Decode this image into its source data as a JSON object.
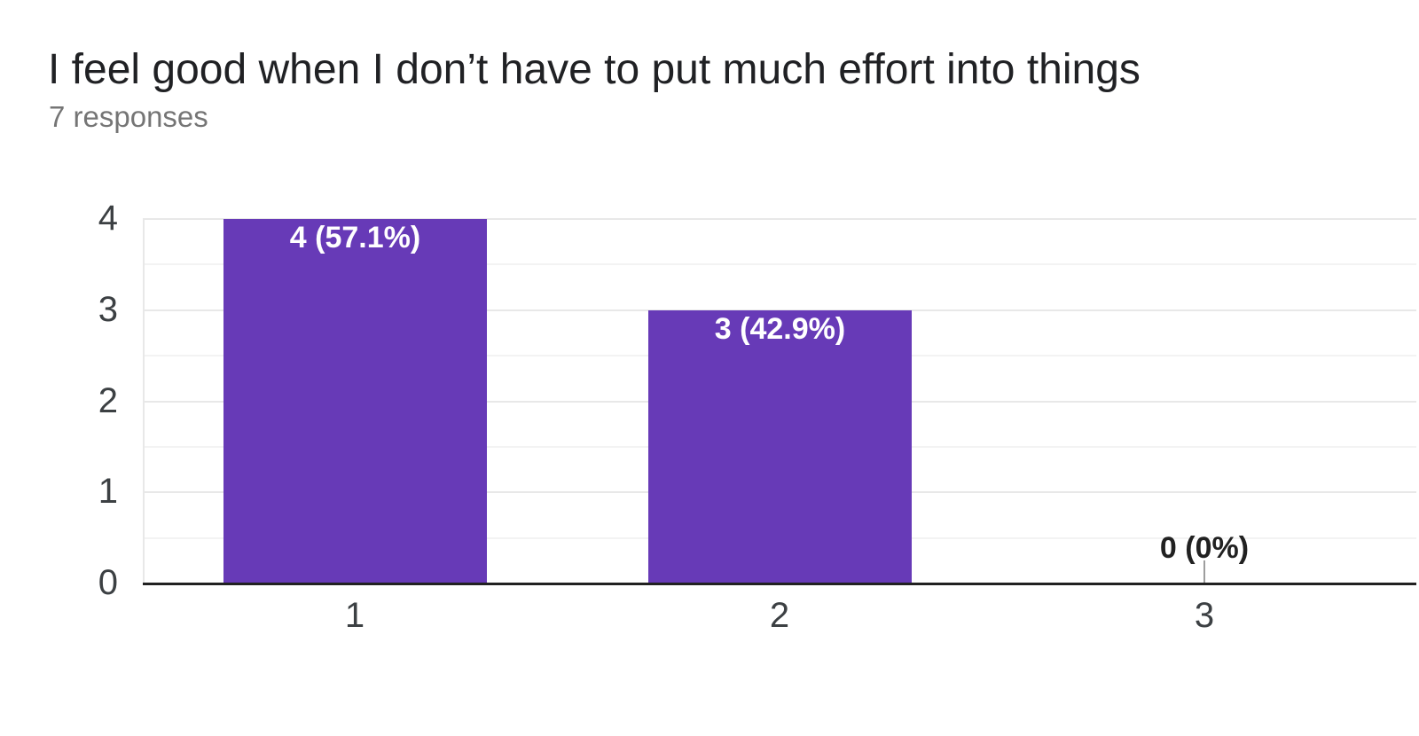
{
  "header": {
    "title": "I feel good when I don’t have to put much effort into things",
    "subtitle": "7 responses"
  },
  "chart_data": {
    "type": "bar",
    "title": "I feel good when I don’t have to put much effort into things",
    "subtitle": "7 responses",
    "total_responses": 7,
    "categories": [
      "1",
      "2",
      "3"
    ],
    "values": [
      4,
      3,
      0
    ],
    "bar_labels": [
      "4 (57.1%)",
      "3 (42.9%)",
      "0 (0%)"
    ],
    "percentages": [
      57.1,
      42.9,
      0
    ],
    "xlabel": "",
    "ylabel": "",
    "ylim": [
      0,
      4
    ],
    "yticks": [
      0,
      1,
      2,
      3,
      4
    ],
    "gridline_step": 0.5,
    "grid": "on",
    "legend": "none",
    "colors": {
      "bar": "#673ab7",
      "bar_label": "#ffffff",
      "zero_label": "#212121",
      "axis_line": "#212121",
      "gridline_major": "#e8e8e8",
      "gridline_minor": "#f3f3f3",
      "tick_label": "#3c4043",
      "leader_line": "#9e9e9e",
      "title": "#202124",
      "subtitle": "#757575"
    }
  }
}
